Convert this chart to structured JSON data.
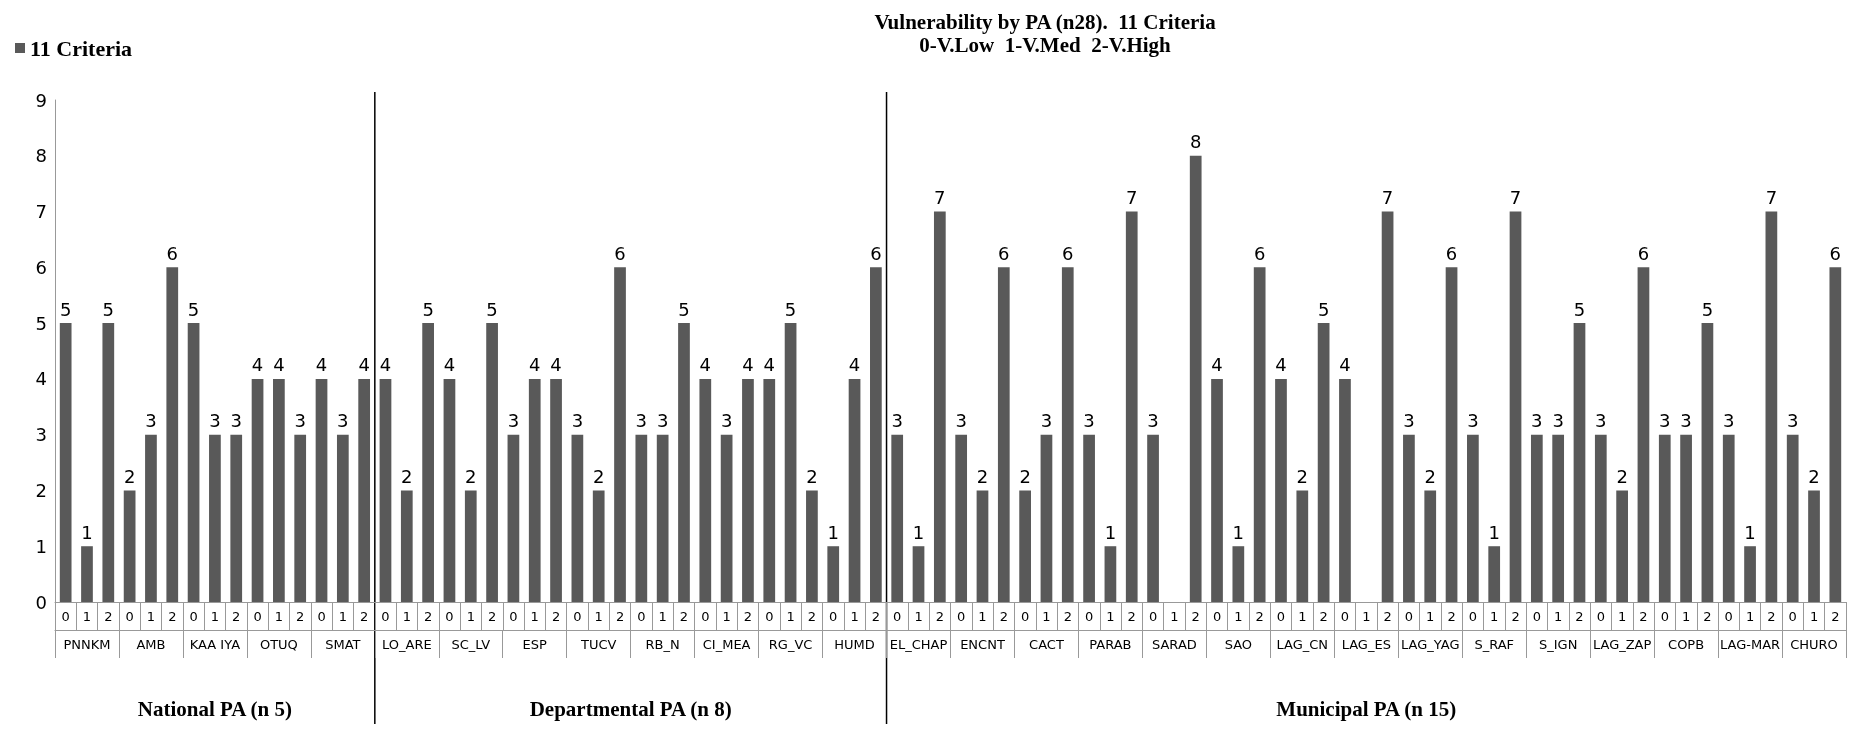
{
  "chart_data": {
    "type": "bar",
    "title": "Vulnerability by PA (n28).  11 Criteria",
    "subtitle": "0-V.Low  1-V.Med  2-V.High",
    "categories": [
      "0",
      "1",
      "2",
      "0",
      "1",
      "2",
      "0",
      "1",
      "2",
      "0",
      "1",
      "2",
      "0",
      "1",
      "2",
      "0",
      "1",
      "2",
      "0",
      "1",
      "2",
      "0",
      "1",
      "2",
      "0",
      "1",
      "2",
      "0",
      "1",
      "2",
      "0",
      "1",
      "2",
      "0",
      "1",
      "2",
      "0",
      "1",
      "2",
      "0",
      "1",
      "2",
      "0",
      "1",
      "2",
      "0",
      "1",
      "2",
      "0",
      "1",
      "2",
      "0",
      "1",
      "2",
      "0",
      "1",
      "2",
      "0",
      "1",
      "2",
      "0",
      "1",
      "2",
      "0",
      "1",
      "2",
      "0",
      "1",
      "2",
      "0",
      "1",
      "2",
      "0",
      "1",
      "2",
      "0",
      "1",
      "2",
      "0",
      "1",
      "2",
      "0",
      "1",
      "2"
    ],
    "series": [
      {
        "name": "11 Criteria",
        "color": "#595959",
        "values": [
          5,
          1,
          5,
          2,
          3,
          6,
          5,
          3,
          3,
          4,
          4,
          3,
          4,
          3,
          4,
          4,
          2,
          5,
          4,
          2,
          5,
          3,
          4,
          4,
          3,
          2,
          6,
          3,
          3,
          5,
          4,
          3,
          4,
          4,
          5,
          2,
          1,
          4,
          6,
          3,
          1,
          7,
          3,
          2,
          6,
          2,
          3,
          6,
          3,
          1,
          7,
          3,
          null,
          8,
          4,
          1,
          6,
          4,
          2,
          5,
          4,
          null,
          7,
          3,
          2,
          6,
          3,
          1,
          7,
          3,
          3,
          5,
          3,
          2,
          6,
          3,
          3,
          5,
          3,
          1,
          7,
          3,
          2,
          6
        ]
      }
    ],
    "annotations": [
      "PNNKM",
      "AMB",
      "KAA IYA",
      "OTUQ",
      "SMAT",
      "LO_ARE",
      "SC_LV",
      "ESP",
      "TUCV",
      "RB_N",
      "CI_MEA",
      "RG_VC",
      "HUMD",
      "EL_CHAP",
      "ENCNT",
      "CACT",
      "PARAB",
      "SARAD",
      "SAO",
      "LAG_CN",
      "LAG_ES",
      "LAG_YAG",
      "S_RAF",
      "S_IGN",
      "LAG_ZAP",
      "COPB",
      "LAG-MAR",
      "CHURO",
      "National PA (n 5)",
      "Departmental PA (n 8)",
      "Municipal PA (n 15)"
    ],
    "ylim": [
      0,
      9
    ],
    "yticks": [
      0,
      1,
      2,
      3,
      4,
      5,
      6,
      7,
      8,
      9
    ],
    "grid": false,
    "legend": "top left",
    "data_labels": true
  }
}
